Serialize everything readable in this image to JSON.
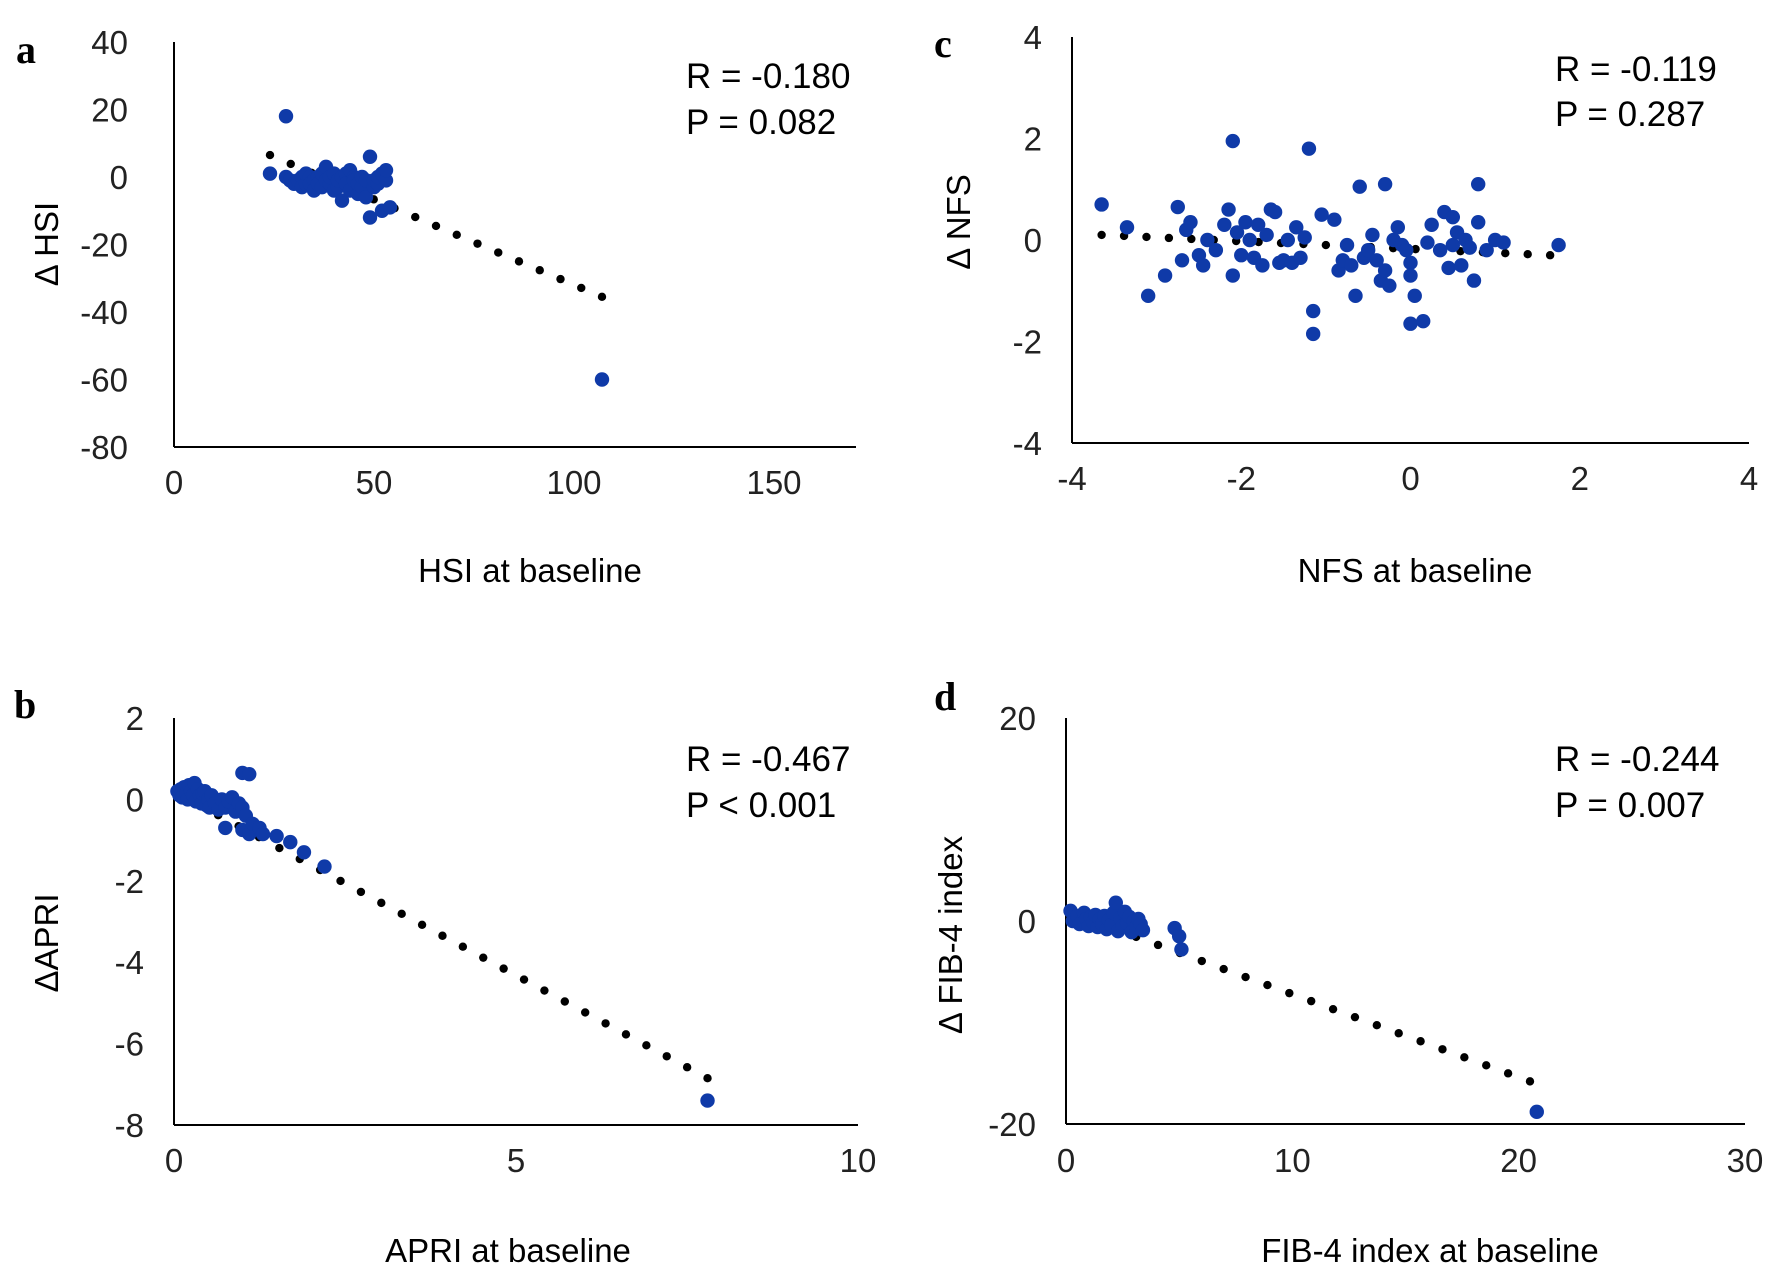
{
  "chart_data": [
    {
      "panel": "a",
      "type": "scatter",
      "xlabel": "HSI at baseline",
      "ylabel": "Δ HSI",
      "xlim": [
        0,
        150
      ],
      "ylim": [
        -80,
        40
      ],
      "xticks": [
        "0",
        "50",
        "100",
        "150"
      ],
      "yticks": [
        "40",
        "20",
        "0",
        "-20",
        "-40",
        "-60",
        "-80"
      ],
      "stat_r": "R = -0.180",
      "stat_p": "P = 0.082",
      "trendline": {
        "x": [
          24,
          107
        ],
        "y": [
          6.5,
          -35.5
        ]
      },
      "point_color": "#0f3aa8",
      "points": [
        [
          24,
          1
        ],
        [
          28,
          18
        ],
        [
          28,
          0
        ],
        [
          29,
          -1
        ],
        [
          30,
          -2
        ],
        [
          31,
          -1
        ],
        [
          32,
          0
        ],
        [
          32,
          -3
        ],
        [
          33,
          -2
        ],
        [
          33,
          1
        ],
        [
          34,
          0
        ],
        [
          34,
          -2
        ],
        [
          35,
          -1
        ],
        [
          35,
          -4
        ],
        [
          36,
          0
        ],
        [
          36,
          -2
        ],
        [
          37,
          -3
        ],
        [
          37,
          1
        ],
        [
          38,
          -1
        ],
        [
          38,
          3
        ],
        [
          39,
          -2
        ],
        [
          39,
          0
        ],
        [
          40,
          -4
        ],
        [
          40,
          1
        ],
        [
          41,
          -3
        ],
        [
          41,
          -1
        ],
        [
          42,
          0
        ],
        [
          42,
          -7
        ],
        [
          43,
          1
        ],
        [
          43,
          -2
        ],
        [
          44,
          -4
        ],
        [
          44,
          2
        ],
        [
          45,
          0
        ],
        [
          45,
          -1
        ],
        [
          46,
          -5
        ],
        [
          46,
          -2
        ],
        [
          47,
          -3
        ],
        [
          47,
          0
        ],
        [
          48,
          -1
        ],
        [
          48,
          -6
        ],
        [
          49,
          6
        ],
        [
          49,
          -12
        ],
        [
          50,
          -3
        ],
        [
          50,
          -1
        ],
        [
          51,
          -2
        ],
        [
          51,
          0
        ],
        [
          52,
          1
        ],
        [
          52,
          -10
        ],
        [
          53,
          -1
        ],
        [
          53,
          2
        ],
        [
          54,
          -9
        ],
        [
          107,
          -60
        ]
      ]
    },
    {
      "panel": "b",
      "type": "scatter",
      "xlabel": "APRI at baseline",
      "ylabel": "ΔAPRI",
      "xlim": [
        0,
        10
      ],
      "ylim": [
        -8,
        2
      ],
      "xticks": [
        "0",
        "5",
        "10"
      ],
      "yticks": [
        "2",
        "0",
        "-2",
        "-4",
        "-6",
        "-8"
      ],
      "stat_r": "R = -0.467",
      "stat_p": "P < 0.001",
      "trendline": {
        "x": [
          0.05,
          7.8
        ],
        "y": [
          0.15,
          -6.85
        ]
      },
      "point_color": "#0f3aa8",
      "points": [
        [
          0.05,
          0.2
        ],
        [
          0.08,
          0.1
        ],
        [
          0.1,
          0.25
        ],
        [
          0.12,
          0.05
        ],
        [
          0.15,
          0.3
        ],
        [
          0.18,
          0.15
        ],
        [
          0.2,
          0.0
        ],
        [
          0.22,
          0.35
        ],
        [
          0.25,
          0.2
        ],
        [
          0.28,
          0.1
        ],
        [
          0.3,
          0.4
        ],
        [
          0.32,
          -0.05
        ],
        [
          0.35,
          0.25
        ],
        [
          0.38,
          0.1
        ],
        [
          0.4,
          -0.1
        ],
        [
          0.42,
          0.15
        ],
        [
          0.45,
          0.2
        ],
        [
          0.48,
          -0.15
        ],
        [
          0.5,
          0.0
        ],
        [
          0.52,
          -0.2
        ],
        [
          0.55,
          0.1
        ],
        [
          0.6,
          -0.1
        ],
        [
          0.65,
          -0.25
        ],
        [
          0.7,
          0.0
        ],
        [
          0.75,
          -0.2
        ],
        [
          0.8,
          -0.05
        ],
        [
          0.85,
          0.05
        ],
        [
          0.9,
          -0.3
        ],
        [
          0.95,
          -0.1
        ],
        [
          1.0,
          -0.2
        ],
        [
          1.05,
          -0.4
        ],
        [
          0.75,
          -0.7
        ],
        [
          1.0,
          -0.75
        ],
        [
          1.1,
          -0.85
        ],
        [
          1.15,
          -0.6
        ],
        [
          1.0,
          0.65
        ],
        [
          1.1,
          0.62
        ],
        [
          1.25,
          -0.7
        ],
        [
          1.3,
          -0.85
        ],
        [
          1.5,
          -0.9
        ],
        [
          1.7,
          -1.05
        ],
        [
          1.9,
          -1.3
        ],
        [
          2.2,
          -1.65
        ],
        [
          7.8,
          -7.4
        ]
      ]
    },
    {
      "panel": "c",
      "type": "scatter",
      "xlabel": "NFS at baseline",
      "ylabel": "Δ NFS",
      "xlim": [
        -4,
        4
      ],
      "ylim": [
        -4,
        4
      ],
      "xticks": [
        "-4",
        "-2",
        "0",
        "2",
        "4"
      ],
      "yticks": [
        "4",
        "2",
        "0",
        "-2",
        "-4"
      ],
      "stat_r": "R = -0.119",
      "stat_p": "P = 0.287",
      "trendline": {
        "x": [
          -3.65,
          1.65
        ],
        "y": [
          0.1,
          -0.3
        ]
      },
      "point_color": "#0f3aa8",
      "points": [
        [
          -3.65,
          0.7
        ],
        [
          -3.35,
          0.25
        ],
        [
          -3.1,
          -1.1
        ],
        [
          -2.9,
          -0.7
        ],
        [
          -2.75,
          0.65
        ],
        [
          -2.7,
          -0.4
        ],
        [
          -2.65,
          0.2
        ],
        [
          -2.6,
          0.35
        ],
        [
          -2.5,
          -0.3
        ],
        [
          -2.45,
          -0.5
        ],
        [
          -2.4,
          0.0
        ],
        [
          -2.3,
          -0.2
        ],
        [
          -2.2,
          0.3
        ],
        [
          -2.15,
          0.6
        ],
        [
          -2.1,
          -0.7
        ],
        [
          -2.1,
          1.95
        ],
        [
          -2.05,
          0.15
        ],
        [
          -2.0,
          -0.3
        ],
        [
          -1.95,
          0.35
        ],
        [
          -1.9,
          0.0
        ],
        [
          -1.85,
          -0.35
        ],
        [
          -1.8,
          0.3
        ],
        [
          -1.75,
          -0.5
        ],
        [
          -1.7,
          0.1
        ],
        [
          -1.65,
          0.6
        ],
        [
          -1.6,
          0.55
        ],
        [
          -1.55,
          -0.45
        ],
        [
          -1.5,
          -0.4
        ],
        [
          -1.45,
          0.0
        ],
        [
          -1.4,
          -0.45
        ],
        [
          -1.35,
          0.25
        ],
        [
          -1.3,
          -0.35
        ],
        [
          -1.25,
          0.05
        ],
        [
          -1.2,
          1.8
        ],
        [
          -1.15,
          -1.4
        ],
        [
          -1.15,
          -1.85
        ],
        [
          -1.05,
          0.5
        ],
        [
          -0.9,
          0.4
        ],
        [
          -0.85,
          -0.6
        ],
        [
          -0.8,
          -0.4
        ],
        [
          -0.75,
          -0.1
        ],
        [
          -0.7,
          -0.5
        ],
        [
          -0.65,
          -1.1
        ],
        [
          -0.6,
          1.05
        ],
        [
          -0.55,
          -0.35
        ],
        [
          -0.5,
          -0.2
        ],
        [
          -0.45,
          0.1
        ],
        [
          -0.4,
          -0.4
        ],
        [
          -0.35,
          -0.8
        ],
        [
          -0.3,
          1.1
        ],
        [
          -0.3,
          -0.6
        ],
        [
          -0.25,
          -0.9
        ],
        [
          -0.2,
          0.0
        ],
        [
          -0.15,
          0.25
        ],
        [
          -0.1,
          -0.1
        ],
        [
          -0.05,
          -0.2
        ],
        [
          0.0,
          -0.45
        ],
        [
          0.0,
          -0.7
        ],
        [
          0.0,
          -1.65
        ],
        [
          0.05,
          -1.1
        ],
        [
          0.15,
          -1.6
        ],
        [
          0.2,
          -0.05
        ],
        [
          0.25,
          0.3
        ],
        [
          0.35,
          -0.2
        ],
        [
          0.4,
          0.55
        ],
        [
          0.45,
          -0.55
        ],
        [
          0.5,
          0.45
        ],
        [
          0.5,
          -0.1
        ],
        [
          0.55,
          0.15
        ],
        [
          0.6,
          -0.5
        ],
        [
          0.65,
          0.0
        ],
        [
          0.7,
          -0.15
        ],
        [
          0.75,
          -0.8
        ],
        [
          0.8,
          0.35
        ],
        [
          0.8,
          1.1
        ],
        [
          0.9,
          -0.2
        ],
        [
          1.0,
          0.0
        ],
        [
          1.1,
          -0.05
        ],
        [
          1.75,
          -0.1
        ]
      ]
    },
    {
      "panel": "d",
      "type": "scatter",
      "xlabel": "FIB-4 index at baseline",
      "ylabel": "Δ FIB-4 index",
      "xlim": [
        0,
        30
      ],
      "ylim": [
        -20,
        20
      ],
      "xticks": [
        "0",
        "10",
        "20",
        "30"
      ],
      "yticks": [
        "20",
        "0",
        "-20"
      ],
      "stat_r": "R = -0.244",
      "stat_p": "P = 0.007",
      "trendline": {
        "x": [
          0.2,
          20.5
        ],
        "y": [
          0.8,
          -15.8
        ]
      },
      "point_color": "#0f3aa8",
      "points": [
        [
          0.2,
          1.0
        ],
        [
          0.3,
          0.0
        ],
        [
          0.5,
          0.5
        ],
        [
          0.6,
          -0.3
        ],
        [
          0.8,
          0.8
        ],
        [
          0.9,
          0.2
        ],
        [
          1.0,
          -0.5
        ],
        [
          1.1,
          0.4
        ],
        [
          1.2,
          -0.1
        ],
        [
          1.3,
          0.6
        ],
        [
          1.4,
          -0.6
        ],
        [
          1.5,
          0.2
        ],
        [
          1.6,
          -0.3
        ],
        [
          1.7,
          0.5
        ],
        [
          1.8,
          -0.8
        ],
        [
          1.9,
          0.1
        ],
        [
          2.0,
          -0.4
        ],
        [
          2.1,
          0.8
        ],
        [
          2.2,
          1.8
        ],
        [
          2.3,
          -1.0
        ],
        [
          2.4,
          0.3
        ],
        [
          2.5,
          -0.5
        ],
        [
          2.6,
          0.9
        ],
        [
          2.7,
          -0.2
        ],
        [
          2.8,
          0.4
        ],
        [
          2.9,
          -1.1
        ],
        [
          3.0,
          0.0
        ],
        [
          3.1,
          -0.6
        ],
        [
          3.2,
          0.2
        ],
        [
          3.3,
          -0.3
        ],
        [
          3.4,
          -0.9
        ],
        [
          4.8,
          -0.7
        ],
        [
          5.0,
          -1.5
        ],
        [
          5.1,
          -2.8
        ],
        [
          20.8,
          -18.8
        ]
      ]
    }
  ]
}
